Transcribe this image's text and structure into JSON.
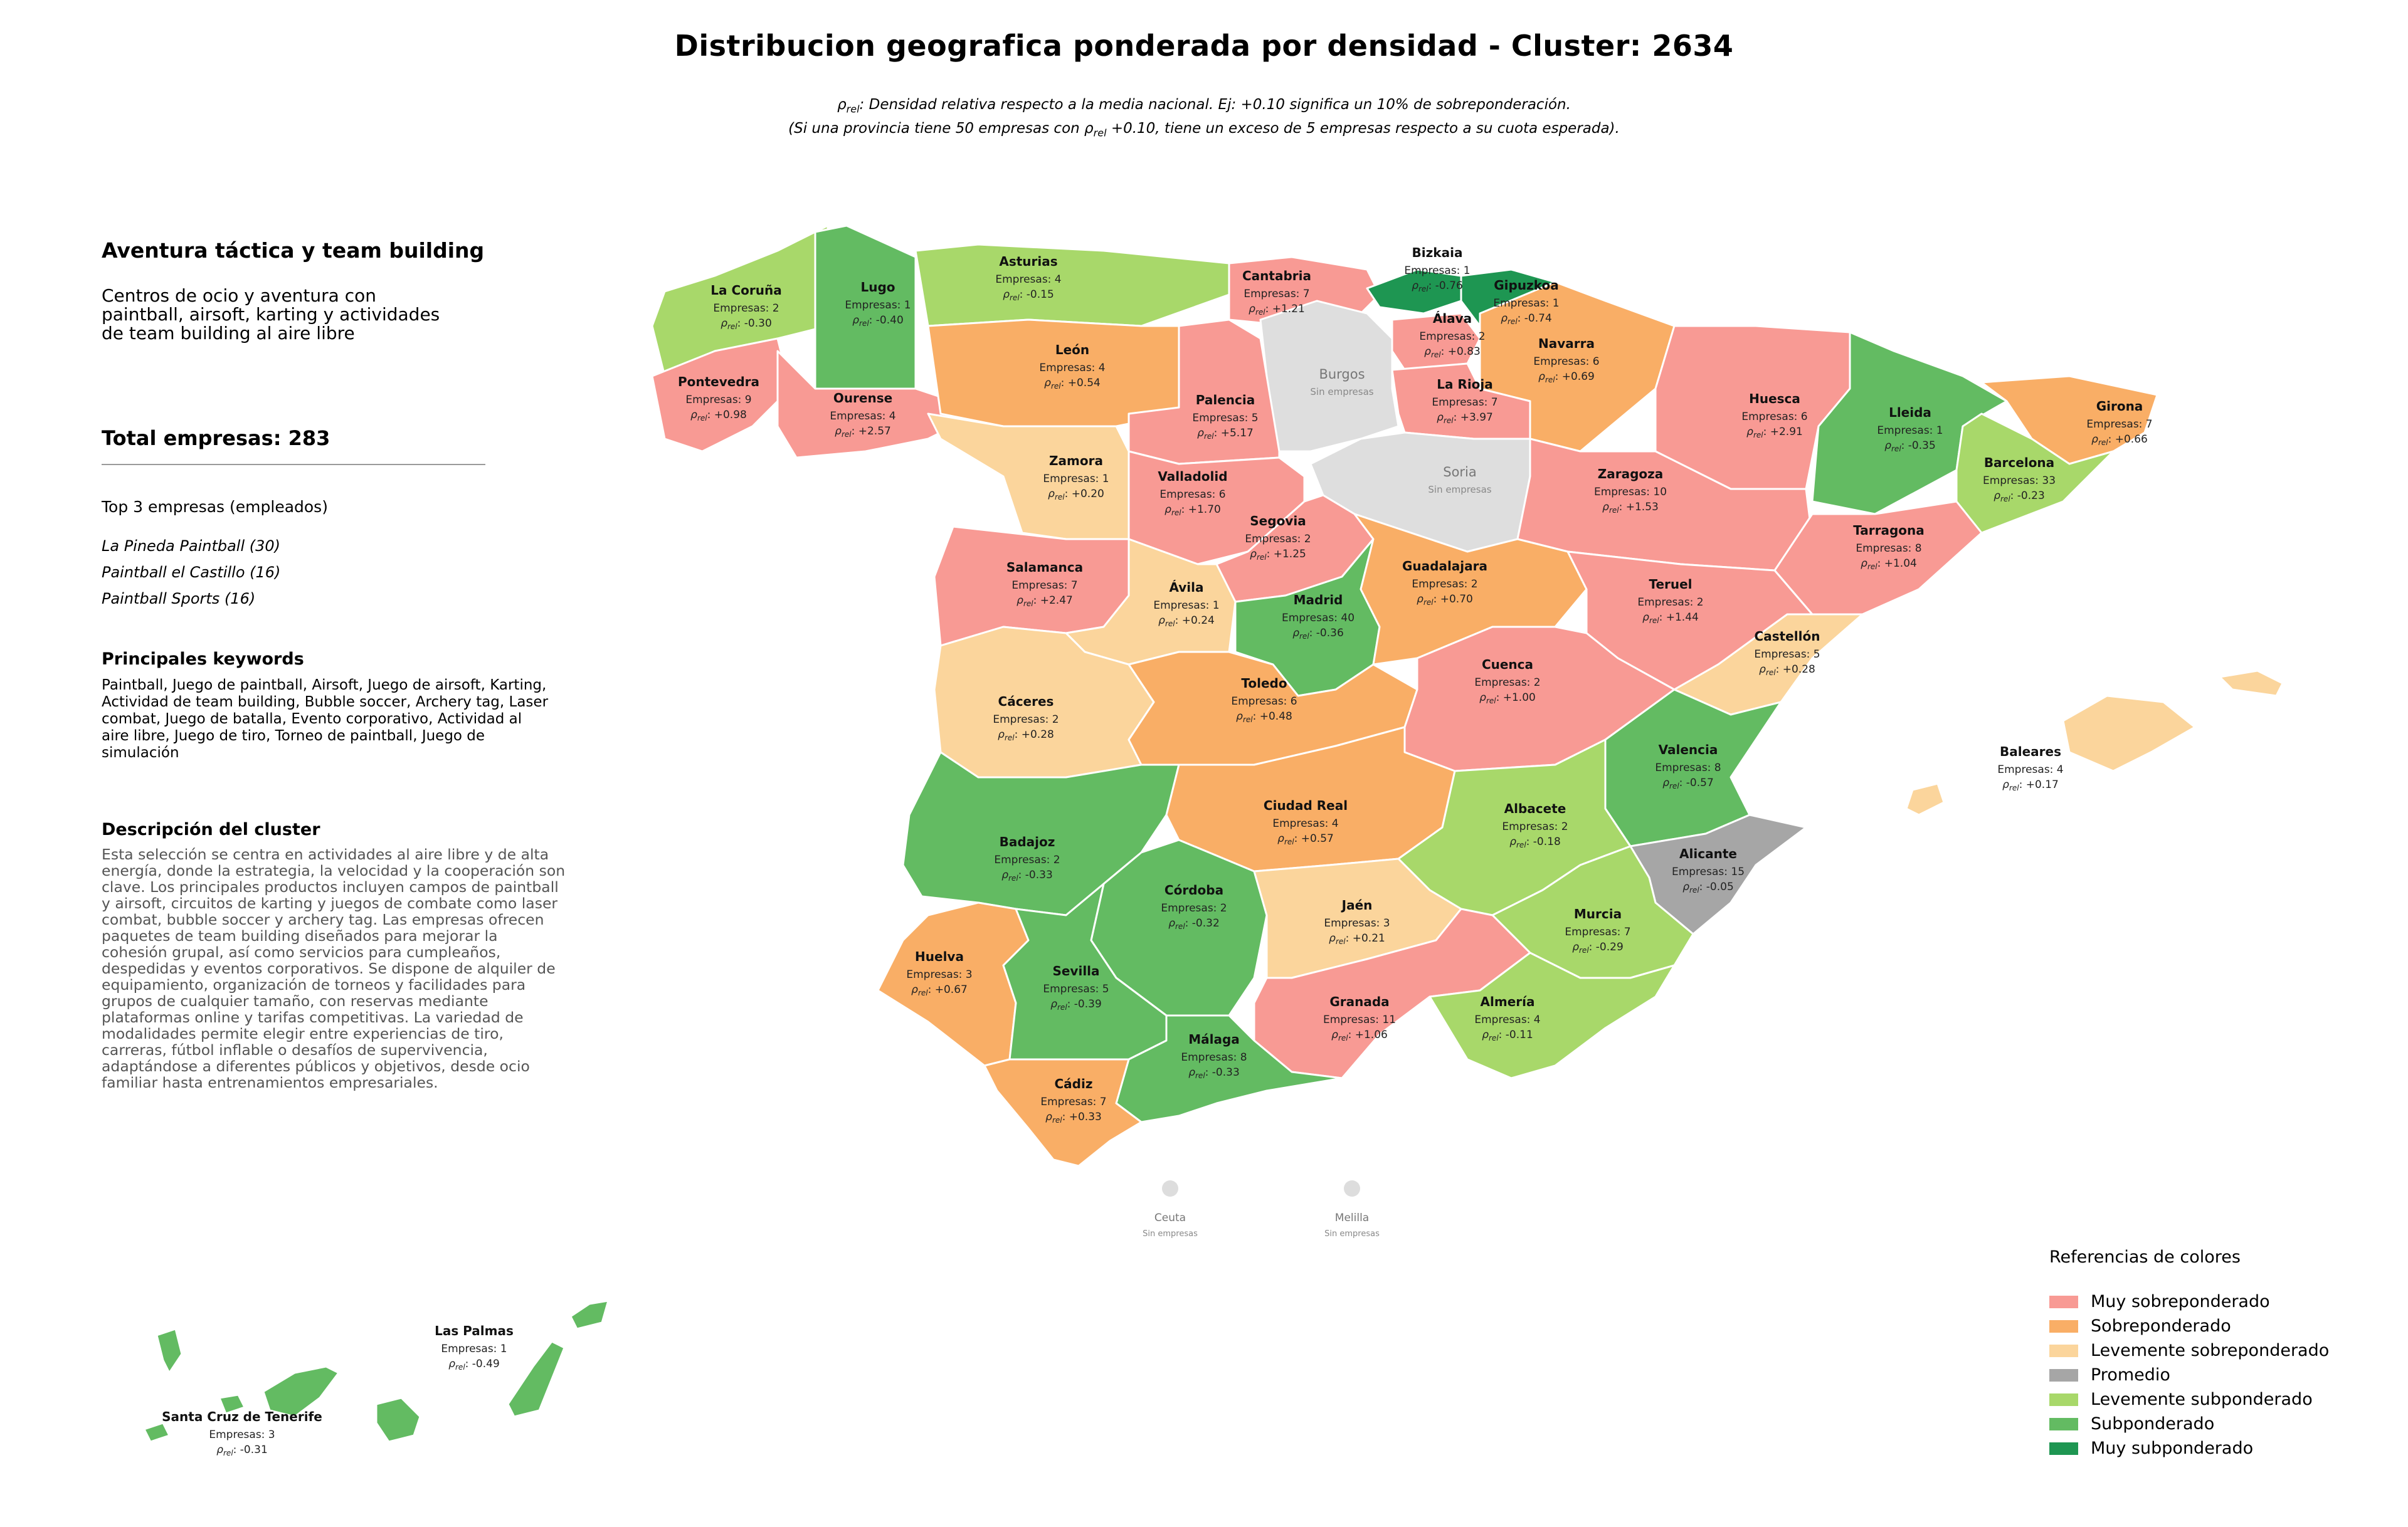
{
  "title": "Distribucion geografica ponderada por densidad - Cluster: 2634",
  "subtitle_line1": "ρrel: Densidad relativa respecto a la media nacional. Ej: +0.10 significa un 10% de sobreponderación.",
  "subtitle_line2": "(Si una provincia tiene 50 empresas con ρrel +0.10, tiene un exceso de 5 empresas respecto a su cuota esperada).",
  "sidebar": {
    "cluster_name": "Aventura táctica y team building",
    "cluster_desc": "Centros de ocio y aventura con paintball, airsoft, karting y actividades de team building al aire libre",
    "total": "Total empresas: 283",
    "top3_title": "Top 3 empresas (empleados)",
    "top3": [
      "La Pineda Paintball (30)",
      "Paintball el Castillo (16)",
      "Paintball Sports (16)"
    ],
    "keywords_title": "Principales keywords",
    "keywords": "Paintball, Juego de paintball, Airsoft, Juego de airsoft, Karting, Actividad de team building, Bubble soccer, Archery tag, Laser combat, Juego de batalla, Evento corporativo, Actividad al aire libre, Juego de tiro, Torneo de paintball, Juego de simulación",
    "description_title": "Descripción del cluster",
    "description": "Esta selección se centra en actividades al aire libre y de alta energía, donde la estrategia, la velocidad y la cooperación son clave. Los principales productos incluyen campos de paintball y airsoft, circuitos de karting y juegos de combate como laser combat, bubble soccer y archery tag. Las empresas ofrecen paquetes de team building diseñados para mejorar la cohesión grupal, así como servicios para cumpleaños, despedidas y eventos corporativos. Se dispone de alquiler de equipamiento, organización de torneos y facilidades para grupos de cualquier tamaño, con reservas mediante plataformas online y tarifas competitivas. La variedad de modalidades permite elegir entre experiencias de tiro, carreras, fútbol inflable o desafíos de supervivencia, adaptándose a diferentes públicos y objetivos, desde ocio familiar hasta entrenamientos empresariales."
  },
  "legend": {
    "title": "Referencias de colores",
    "items": [
      {
        "label": "Muy sobreponderado",
        "color": "#f89a94"
      },
      {
        "label": "Sobreponderado",
        "color": "#f9ae66"
      },
      {
        "label": "Levemente sobreponderado",
        "color": "#fbd59c"
      },
      {
        "label": "Promedio",
        "color": "#a6a6a6"
      },
      {
        "label": "Levemente subponderado",
        "color": "#a8d86a"
      },
      {
        "label": "Subponderado",
        "color": "#63bb62"
      },
      {
        "label": "Muy subponderado",
        "color": "#1e9652"
      }
    ]
  },
  "no_data_label": "Sin empresas",
  "provinces": [
    {
      "name": "La Coruña",
      "empresas": "Empresas: 2",
      "rho": -0.3,
      "cat": "Levemente subponderado"
    },
    {
      "name": "Lugo",
      "empresas": "Empresas: 1",
      "rho": -0.4,
      "cat": "Subponderado"
    },
    {
      "name": "Asturias",
      "empresas": "Empresas: 4",
      "rho": -0.15,
      "cat": "Levemente subponderado"
    },
    {
      "name": "Cantabria",
      "empresas": "Empresas: 7",
      "rho": 1.21,
      "cat": "Muy sobreponderado"
    },
    {
      "name": "Bizkaia",
      "empresas": "Empresas: 1",
      "rho": -0.76,
      "cat": "Muy subponderado"
    },
    {
      "name": "Gipuzkoa",
      "empresas": "Empresas: 1",
      "rho": -0.74,
      "cat": "Muy subponderado"
    },
    {
      "name": "Álava",
      "empresas": "Empresas: 2",
      "rho": 0.83,
      "cat": "Muy sobreponderado"
    },
    {
      "name": "Navarra",
      "empresas": "Empresas: 6",
      "rho": 0.69,
      "cat": "Sobreponderado"
    },
    {
      "name": "Pontevedra",
      "empresas": "Empresas: 9",
      "rho": 0.98,
      "cat": "Muy sobreponderado"
    },
    {
      "name": "Ourense",
      "empresas": "Empresas: 4",
      "rho": 2.57,
      "cat": "Muy sobreponderado"
    },
    {
      "name": "León",
      "empresas": "Empresas: 4",
      "rho": 0.54,
      "cat": "Sobreponderado"
    },
    {
      "name": "Palencia",
      "empresas": "Empresas: 5",
      "rho": 5.17,
      "cat": "Muy sobreponderado"
    },
    {
      "name": "Burgos",
      "empresas": null,
      "rho": null,
      "cat": "Sin empresas"
    },
    {
      "name": "La Rioja",
      "empresas": "Empresas: 7",
      "rho": 3.97,
      "cat": "Muy sobreponderado"
    },
    {
      "name": "Huesca",
      "empresas": "Empresas: 6",
      "rho": 2.91,
      "cat": "Muy sobreponderado"
    },
    {
      "name": "Lleida",
      "empresas": "Empresas: 1",
      "rho": -0.35,
      "cat": "Subponderado"
    },
    {
      "name": "Girona",
      "empresas": "Empresas: 7",
      "rho": 0.66,
      "cat": "Sobreponderado"
    },
    {
      "name": "Barcelona",
      "empresas": "Empresas: 33",
      "rho": -0.23,
      "cat": "Levemente subponderado"
    },
    {
      "name": "Zamora",
      "empresas": "Empresas: 1",
      "rho": 0.2,
      "cat": "Levemente sobreponderado"
    },
    {
      "name": "Valladolid",
      "empresas": "Empresas: 6",
      "rho": 1.7,
      "cat": "Muy sobreponderado"
    },
    {
      "name": "Soria",
      "empresas": null,
      "rho": null,
      "cat": "Sin empresas"
    },
    {
      "name": "Zaragoza",
      "empresas": "Empresas: 10",
      "rho": 1.53,
      "cat": "Muy sobreponderado"
    },
    {
      "name": "Tarragona",
      "empresas": "Empresas: 8",
      "rho": 1.04,
      "cat": "Muy sobreponderado"
    },
    {
      "name": "Segovia",
      "empresas": "Empresas: 2",
      "rho": 1.25,
      "cat": "Muy sobreponderado"
    },
    {
      "name": "Salamanca",
      "empresas": "Empresas: 7",
      "rho": 2.47,
      "cat": "Muy sobreponderado"
    },
    {
      "name": "Ávila",
      "empresas": "Empresas: 1",
      "rho": 0.24,
      "cat": "Levemente sobreponderado"
    },
    {
      "name": "Madrid",
      "empresas": "Empresas: 40",
      "rho": -0.36,
      "cat": "Subponderado"
    },
    {
      "name": "Guadalajara",
      "empresas": "Empresas: 2",
      "rho": 0.7,
      "cat": "Sobreponderado"
    },
    {
      "name": "Teruel",
      "empresas": "Empresas: 2",
      "rho": 1.44,
      "cat": "Muy sobreponderado"
    },
    {
      "name": "Castellón",
      "empresas": "Empresas: 5",
      "rho": 0.28,
      "cat": "Levemente sobreponderado"
    },
    {
      "name": "Cáceres",
      "empresas": "Empresas: 2",
      "rho": 0.28,
      "cat": "Levemente sobreponderado"
    },
    {
      "name": "Toledo",
      "empresas": "Empresas: 6",
      "rho": 0.48,
      "cat": "Sobreponderado"
    },
    {
      "name": "Cuenca",
      "empresas": "Empresas: 2",
      "rho": 1.0,
      "cat": "Muy sobreponderado"
    },
    {
      "name": "Valencia",
      "empresas": "Empresas: 8",
      "rho": -0.57,
      "cat": "Subponderado"
    },
    {
      "name": "Baleares",
      "empresas": "Empresas: 4",
      "rho": 0.17,
      "cat": "Levemente sobreponderado"
    },
    {
      "name": "Badajoz",
      "empresas": "Empresas: 2",
      "rho": -0.33,
      "cat": "Subponderado"
    },
    {
      "name": "Ciudad Real",
      "empresas": "Empresas: 4",
      "rho": 0.57,
      "cat": "Sobreponderado"
    },
    {
      "name": "Albacete",
      "empresas": "Empresas: 2",
      "rho": -0.18,
      "cat": "Levemente subponderado"
    },
    {
      "name": "Alicante",
      "empresas": "Empresas: 15",
      "rho": -0.05,
      "cat": "Promedio"
    },
    {
      "name": "Córdoba",
      "empresas": "Empresas: 2",
      "rho": -0.32,
      "cat": "Subponderado"
    },
    {
      "name": "Jaén",
      "empresas": "Empresas: 3",
      "rho": 0.21,
      "cat": "Levemente sobreponderado"
    },
    {
      "name": "Murcia",
      "empresas": "Empresas: 7",
      "rho": -0.29,
      "cat": "Levemente subponderado"
    },
    {
      "name": "Huelva",
      "empresas": "Empresas: 3",
      "rho": 0.67,
      "cat": "Sobreponderado"
    },
    {
      "name": "Sevilla",
      "empresas": "Empresas: 5",
      "rho": -0.39,
      "cat": "Subponderado"
    },
    {
      "name": "Granada",
      "empresas": "Empresas: 11",
      "rho": 1.06,
      "cat": "Muy sobreponderado"
    },
    {
      "name": "Almería",
      "empresas": "Empresas: 4",
      "rho": -0.11,
      "cat": "Levemente subponderado"
    },
    {
      "name": "Málaga",
      "empresas": "Empresas: 8",
      "rho": -0.33,
      "cat": "Subponderado"
    },
    {
      "name": "Cádiz",
      "empresas": "Empresas: 7",
      "rho": 0.33,
      "cat": "Sobreponderado"
    },
    {
      "name": "Ceuta",
      "empresas": null,
      "rho": null,
      "cat": "Sin empresas"
    },
    {
      "name": "Melilla",
      "empresas": null,
      "rho": null,
      "cat": "Sin empresas"
    },
    {
      "name": "Las Palmas",
      "empresas": "Empresas: 1",
      "rho": -0.49,
      "cat": "Subponderado"
    },
    {
      "name": "Santa Cruz de Tenerife",
      "empresas": "Empresas: 3",
      "rho": -0.31,
      "cat": "Subponderado"
    }
  ]
}
